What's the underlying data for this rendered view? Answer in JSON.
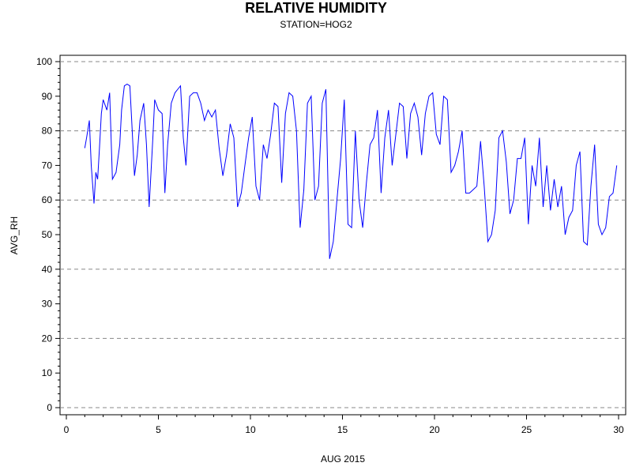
{
  "chart_data": {
    "type": "line",
    "title": "RELATIVE HUMIDITY",
    "subtitle": "STATION=HOG2",
    "xlabel": "AUG 2015",
    "ylabel": "AVG_RH",
    "xlim": [
      0,
      30
    ],
    "ylim": [
      0,
      100
    ],
    "x_ticks": [
      0,
      5,
      10,
      15,
      20,
      25,
      30
    ],
    "y_ticks": [
      0,
      10,
      20,
      30,
      40,
      50,
      60,
      70,
      80,
      90,
      100
    ],
    "grid": "horizontal dashed at 20,40,60,80,100",
    "line_color": "#0000ff",
    "series": [
      {
        "x": [
          1.0,
          1.1,
          1.25,
          1.35,
          1.5,
          1.6,
          1.7,
          1.8,
          1.9,
          2.0,
          2.2,
          2.35,
          2.5,
          2.7,
          2.9,
          3.0,
          3.15,
          3.3,
          3.45,
          3.55,
          3.7,
          3.85,
          4.0,
          4.2,
          4.35,
          4.5,
          4.7,
          4.8,
          5.0,
          5.2,
          5.35,
          5.5,
          5.7,
          5.9,
          6.05,
          6.2,
          6.35,
          6.5,
          6.7,
          6.9,
          7.1,
          7.3,
          7.5,
          7.7,
          7.9,
          8.1,
          8.3,
          8.5,
          8.7,
          8.9,
          9.1,
          9.3,
          9.5,
          9.7,
          9.9,
          10.1,
          10.3,
          10.5,
          10.7,
          10.9,
          11.1,
          11.3,
          11.5,
          11.7,
          11.9,
          12.1,
          12.3,
          12.5,
          12.7,
          12.9,
          13.1,
          13.3,
          13.5,
          13.7,
          13.9,
          14.1,
          14.3,
          14.5,
          14.7,
          14.9,
          15.1,
          15.3,
          15.5,
          15.7,
          15.9,
          16.1,
          16.3,
          16.5,
          16.7,
          16.9,
          17.1,
          17.3,
          17.5,
          17.7,
          17.9,
          18.1,
          18.3,
          18.5,
          18.7,
          18.9,
          19.1,
          19.3,
          19.5,
          19.7,
          19.9,
          20.1,
          20.3,
          20.5,
          20.7,
          20.9,
          21.1,
          21.3,
          21.5,
          21.7,
          21.9,
          22.1,
          22.3,
          22.5,
          22.7,
          22.9,
          23.1,
          23.3,
          23.5,
          23.7,
          23.9,
          24.1,
          24.3,
          24.5,
          24.7,
          24.9,
          25.1,
          25.3,
          25.5,
          25.7,
          25.9,
          26.1,
          26.3,
          26.5,
          26.7,
          26.9,
          27.1,
          27.3,
          27.5,
          27.7,
          27.9,
          28.1,
          28.3,
          28.5,
          28.7,
          28.9,
          29.1,
          29.3,
          29.5,
          29.7,
          29.9
        ],
        "y": [
          75,
          78,
          83,
          70,
          59,
          68,
          66,
          75,
          85,
          89,
          86,
          91,
          66,
          68,
          76,
          86,
          93,
          93.5,
          93,
          83,
          67,
          73,
          83,
          88,
          76,
          58,
          78,
          89,
          86,
          85,
          62,
          76,
          88,
          91,
          92,
          93,
          78,
          70,
          90,
          91,
          91,
          88,
          83,
          86,
          84,
          86,
          75,
          67,
          73,
          82,
          78,
          58,
          62,
          70,
          78,
          84,
          64,
          60,
          76,
          72,
          79,
          88,
          87,
          65,
          85,
          91,
          90,
          80,
          52,
          63,
          88,
          90,
          60,
          64,
          88,
          92,
          43,
          48,
          60,
          72,
          89,
          53,
          52,
          80,
          60,
          52,
          65,
          76,
          78,
          86,
          62,
          78,
          86,
          70,
          79,
          88,
          87,
          72,
          85,
          88,
          84,
          73,
          85,
          90,
          91,
          79,
          76,
          90,
          89,
          68,
          70,
          74,
          80,
          62,
          62,
          63,
          64,
          77,
          64,
          48,
          50,
          57,
          78,
          80,
          71,
          56,
          60,
          72,
          72,
          78,
          53,
          70,
          64,
          78,
          58,
          70,
          57,
          66,
          58,
          64,
          50,
          55,
          57,
          70,
          74,
          48,
          47,
          64,
          76,
          53,
          50,
          52,
          61,
          62,
          70
        ]
      }
    ]
  }
}
